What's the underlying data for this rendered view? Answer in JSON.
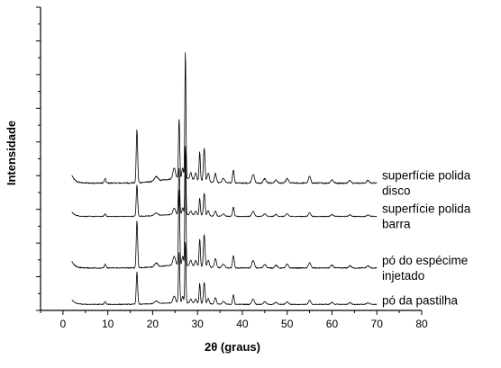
{
  "chart_data": {
    "type": "line",
    "title": "",
    "xlabel": "2θ (graus)",
    "ylabel": "Intensidade",
    "xlim": [
      -5,
      80
    ],
    "xticks": [
      0,
      10,
      20,
      30,
      40,
      50,
      60,
      70,
      80
    ],
    "y_tick_labels": false,
    "grid": false,
    "legend": "inline-right",
    "x_start": 2,
    "x_end": 70,
    "series": [
      {
        "name": "superfície polida disco",
        "label_lines": [
          "superfície polida",
          "disco"
        ],
        "baseline": 0.42,
        "background_rise": 0.02,
        "scale": 0.73,
        "peaks": [
          [
            9.4,
            0.02,
            0.25
          ],
          [
            16.5,
            0.24,
            0.22
          ],
          [
            20.8,
            0.02,
            0.5
          ],
          [
            24.8,
            0.05,
            0.4
          ],
          [
            25.9,
            0.27,
            0.2
          ],
          [
            26.7,
            0.05,
            0.25
          ],
          [
            27.3,
            0.58,
            0.17
          ],
          [
            28.5,
            0.03,
            0.3
          ],
          [
            29.6,
            0.03,
            0.3
          ],
          [
            30.5,
            0.13,
            0.2
          ],
          [
            31.5,
            0.15,
            0.25
          ],
          [
            32.4,
            0.04,
            0.3
          ],
          [
            34.0,
            0.04,
            0.3
          ],
          [
            35.8,
            0.02,
            0.4
          ],
          [
            38.0,
            0.06,
            0.25
          ],
          [
            42.4,
            0.04,
            0.4
          ],
          [
            45.0,
            0.02,
            0.4
          ],
          [
            47.5,
            0.015,
            0.4
          ],
          [
            50.0,
            0.02,
            0.4
          ],
          [
            55.0,
            0.03,
            0.35
          ],
          [
            60.0,
            0.015,
            0.4
          ],
          [
            64.0,
            0.012,
            0.4
          ],
          [
            68.0,
            0.012,
            0.4
          ]
        ]
      },
      {
        "name": "superfície polida barra",
        "label_lines": [
          "superfície polida",
          "barra"
        ],
        "baseline": 0.31,
        "background_rise": 0.015,
        "scale": 0.43,
        "peaks": [
          [
            9.4,
            0.02,
            0.25
          ],
          [
            16.5,
            0.24,
            0.22
          ],
          [
            20.8,
            0.02,
            0.5
          ],
          [
            24.8,
            0.05,
            0.4
          ],
          [
            25.9,
            0.36,
            0.2
          ],
          [
            26.7,
            0.05,
            0.25
          ],
          [
            27.3,
            0.53,
            0.17
          ],
          [
            28.5,
            0.03,
            0.3
          ],
          [
            29.6,
            0.03,
            0.3
          ],
          [
            30.5,
            0.13,
            0.2
          ],
          [
            31.5,
            0.17,
            0.25
          ],
          [
            32.4,
            0.04,
            0.3
          ],
          [
            34.0,
            0.04,
            0.3
          ],
          [
            35.8,
            0.02,
            0.4
          ],
          [
            38.0,
            0.07,
            0.25
          ],
          [
            42.4,
            0.04,
            0.4
          ],
          [
            45.0,
            0.02,
            0.4
          ],
          [
            47.5,
            0.015,
            0.4
          ],
          [
            50.0,
            0.02,
            0.4
          ],
          [
            55.0,
            0.03,
            0.35
          ],
          [
            60.0,
            0.015,
            0.4
          ],
          [
            64.0,
            0.012,
            0.4
          ],
          [
            68.0,
            0.012,
            0.4
          ]
        ]
      },
      {
        "name": "pó do espécime injetado",
        "label_lines": [
          "pó do espécime",
          "injetado"
        ],
        "baseline": 0.14,
        "background_rise": 0.015,
        "scale": 0.6,
        "peaks": [
          [
            9.4,
            0.02,
            0.25
          ],
          [
            16.5,
            0.26,
            0.22
          ],
          [
            20.8,
            0.02,
            0.5
          ],
          [
            24.8,
            0.05,
            0.4
          ],
          [
            25.9,
            0.42,
            0.2
          ],
          [
            26.7,
            0.05,
            0.25
          ],
          [
            27.3,
            0.62,
            0.17
          ],
          [
            28.5,
            0.03,
            0.3
          ],
          [
            29.6,
            0.03,
            0.3
          ],
          [
            30.5,
            0.15,
            0.2
          ],
          [
            31.5,
            0.18,
            0.25
          ],
          [
            32.4,
            0.04,
            0.3
          ],
          [
            34.0,
            0.05,
            0.3
          ],
          [
            35.8,
            0.02,
            0.4
          ],
          [
            38.0,
            0.07,
            0.25
          ],
          [
            42.4,
            0.04,
            0.4
          ],
          [
            45.0,
            0.02,
            0.4
          ],
          [
            47.5,
            0.015,
            0.4
          ],
          [
            50.0,
            0.02,
            0.4
          ],
          [
            55.0,
            0.03,
            0.35
          ],
          [
            60.0,
            0.015,
            0.4
          ],
          [
            64.0,
            0.012,
            0.4
          ],
          [
            68.0,
            0.012,
            0.4
          ]
        ]
      },
      {
        "name": "pó da pastilha",
        "label_lines": [
          "pó da pastilha"
        ],
        "baseline": 0.02,
        "background_rise": 0.012,
        "scale": 0.44,
        "peaks": [
          [
            9.4,
            0.02,
            0.25
          ],
          [
            16.5,
            0.24,
            0.22
          ],
          [
            20.8,
            0.02,
            0.5
          ],
          [
            24.8,
            0.05,
            0.4
          ],
          [
            25.9,
            0.38,
            0.2
          ],
          [
            26.7,
            0.05,
            0.25
          ],
          [
            27.3,
            0.46,
            0.17
          ],
          [
            28.5,
            0.03,
            0.3
          ],
          [
            29.6,
            0.03,
            0.3
          ],
          [
            30.5,
            0.15,
            0.2
          ],
          [
            31.5,
            0.16,
            0.25
          ],
          [
            32.4,
            0.04,
            0.3
          ],
          [
            34.0,
            0.05,
            0.3
          ],
          [
            35.8,
            0.02,
            0.4
          ],
          [
            38.0,
            0.07,
            0.25
          ],
          [
            42.4,
            0.04,
            0.4
          ],
          [
            45.0,
            0.02,
            0.4
          ],
          [
            47.5,
            0.015,
            0.4
          ],
          [
            50.0,
            0.02,
            0.4
          ],
          [
            55.0,
            0.03,
            0.35
          ],
          [
            60.0,
            0.015,
            0.4
          ],
          [
            64.0,
            0.012,
            0.4
          ],
          [
            68.0,
            0.012,
            0.4
          ]
        ]
      }
    ]
  }
}
